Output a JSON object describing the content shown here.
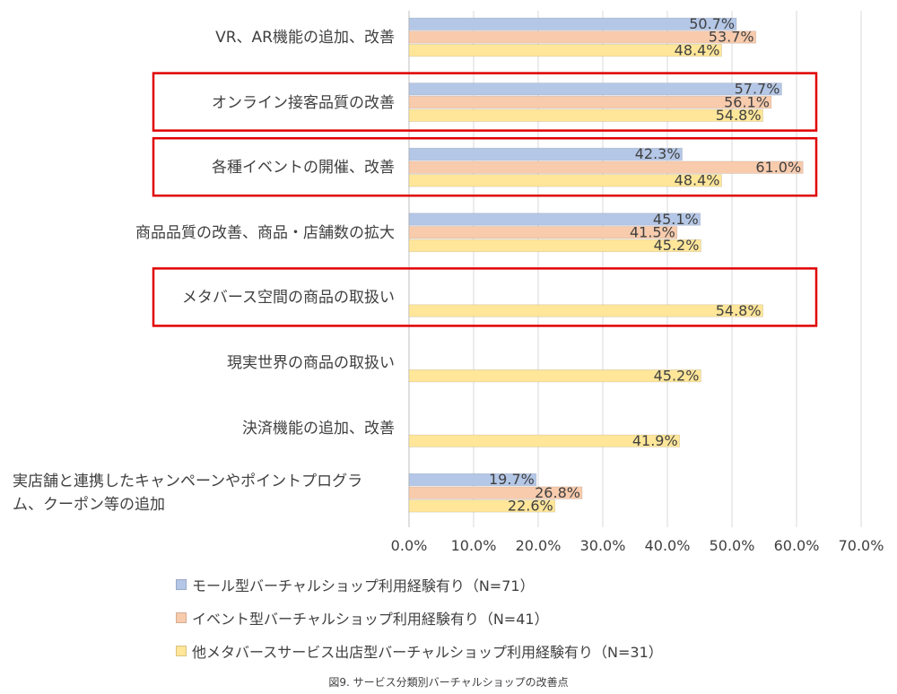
{
  "chart_data": {
    "type": "bar",
    "orientation": "horizontal",
    "categories": [
      "VR、AR機能の追加、改善",
      "オンライン接客品質の改善",
      "各種イベントの開催、改善",
      "商品品質の改善、商品・店舗数の拡大",
      "メタバース空間の商品の取扱い",
      "現実世界の商品の取扱い",
      "決済機能の追加、改善",
      "実店舗と連携したキャンペーンやポイントプログラム、クーポン等の追加"
    ],
    "category_lines": [
      [
        "VR、AR機能の追加、改善"
      ],
      [
        "オンライン接客品質の改善"
      ],
      [
        "各種イベントの開催、改善"
      ],
      [
        "商品品質の改善、商品・店舗数の拡大"
      ],
      [
        "メタバース空間の商品の取扱い"
      ],
      [
        "現実世界の商品の取扱い"
      ],
      [
        "決済機能の追加、改善"
      ],
      [
        "実店舗と連携したキャンペーンやポイントプログラ",
        "ム、クーポン等の追加"
      ]
    ],
    "series": [
      {
        "name": "モール型バーチャルショップ利用経験有り（N=71）",
        "color": "#b4c7e7",
        "values": [
          50.7,
          57.7,
          42.3,
          45.1,
          null,
          null,
          null,
          19.7
        ]
      },
      {
        "name": "イベント型バーチャルショップ利用経験有り（N=41）",
        "color": "#f8cbad",
        "values": [
          53.7,
          56.1,
          61.0,
          41.5,
          null,
          null,
          null,
          26.8
        ]
      },
      {
        "name": "他メタバースサービス出店型バーチャルショップ利用経験有り（N=31）",
        "color": "#ffe699",
        "values": [
          48.4,
          54.8,
          48.4,
          45.2,
          54.8,
          45.2,
          41.9,
          22.6
        ]
      }
    ],
    "value_labels": [
      [
        "50.7%",
        "57.7%",
        "42.3%",
        "45.1%",
        "",
        "",
        "",
        "19.7%"
      ],
      [
        "53.7%",
        "56.1%",
        "61.0%",
        "41.5%",
        "",
        "",
        "",
        "26.8%"
      ],
      [
        "48.4%",
        "54.8%",
        "48.4%",
        "45.2%",
        "54.8%",
        "45.2%",
        "41.9%",
        "22.6%"
      ]
    ],
    "x_ticks": [
      "0.0%",
      "10.0%",
      "20.0%",
      "30.0%",
      "40.0%",
      "50.0%",
      "60.0%",
      "70.0%"
    ],
    "xlim": [
      0,
      70
    ],
    "grid": true,
    "legend_position": "bottom",
    "highlighted_categories": [
      1,
      2,
      4
    ],
    "highlight_color": "#e00000",
    "caption": "図9. サービス分類別バーチャルショップの改善点"
  }
}
